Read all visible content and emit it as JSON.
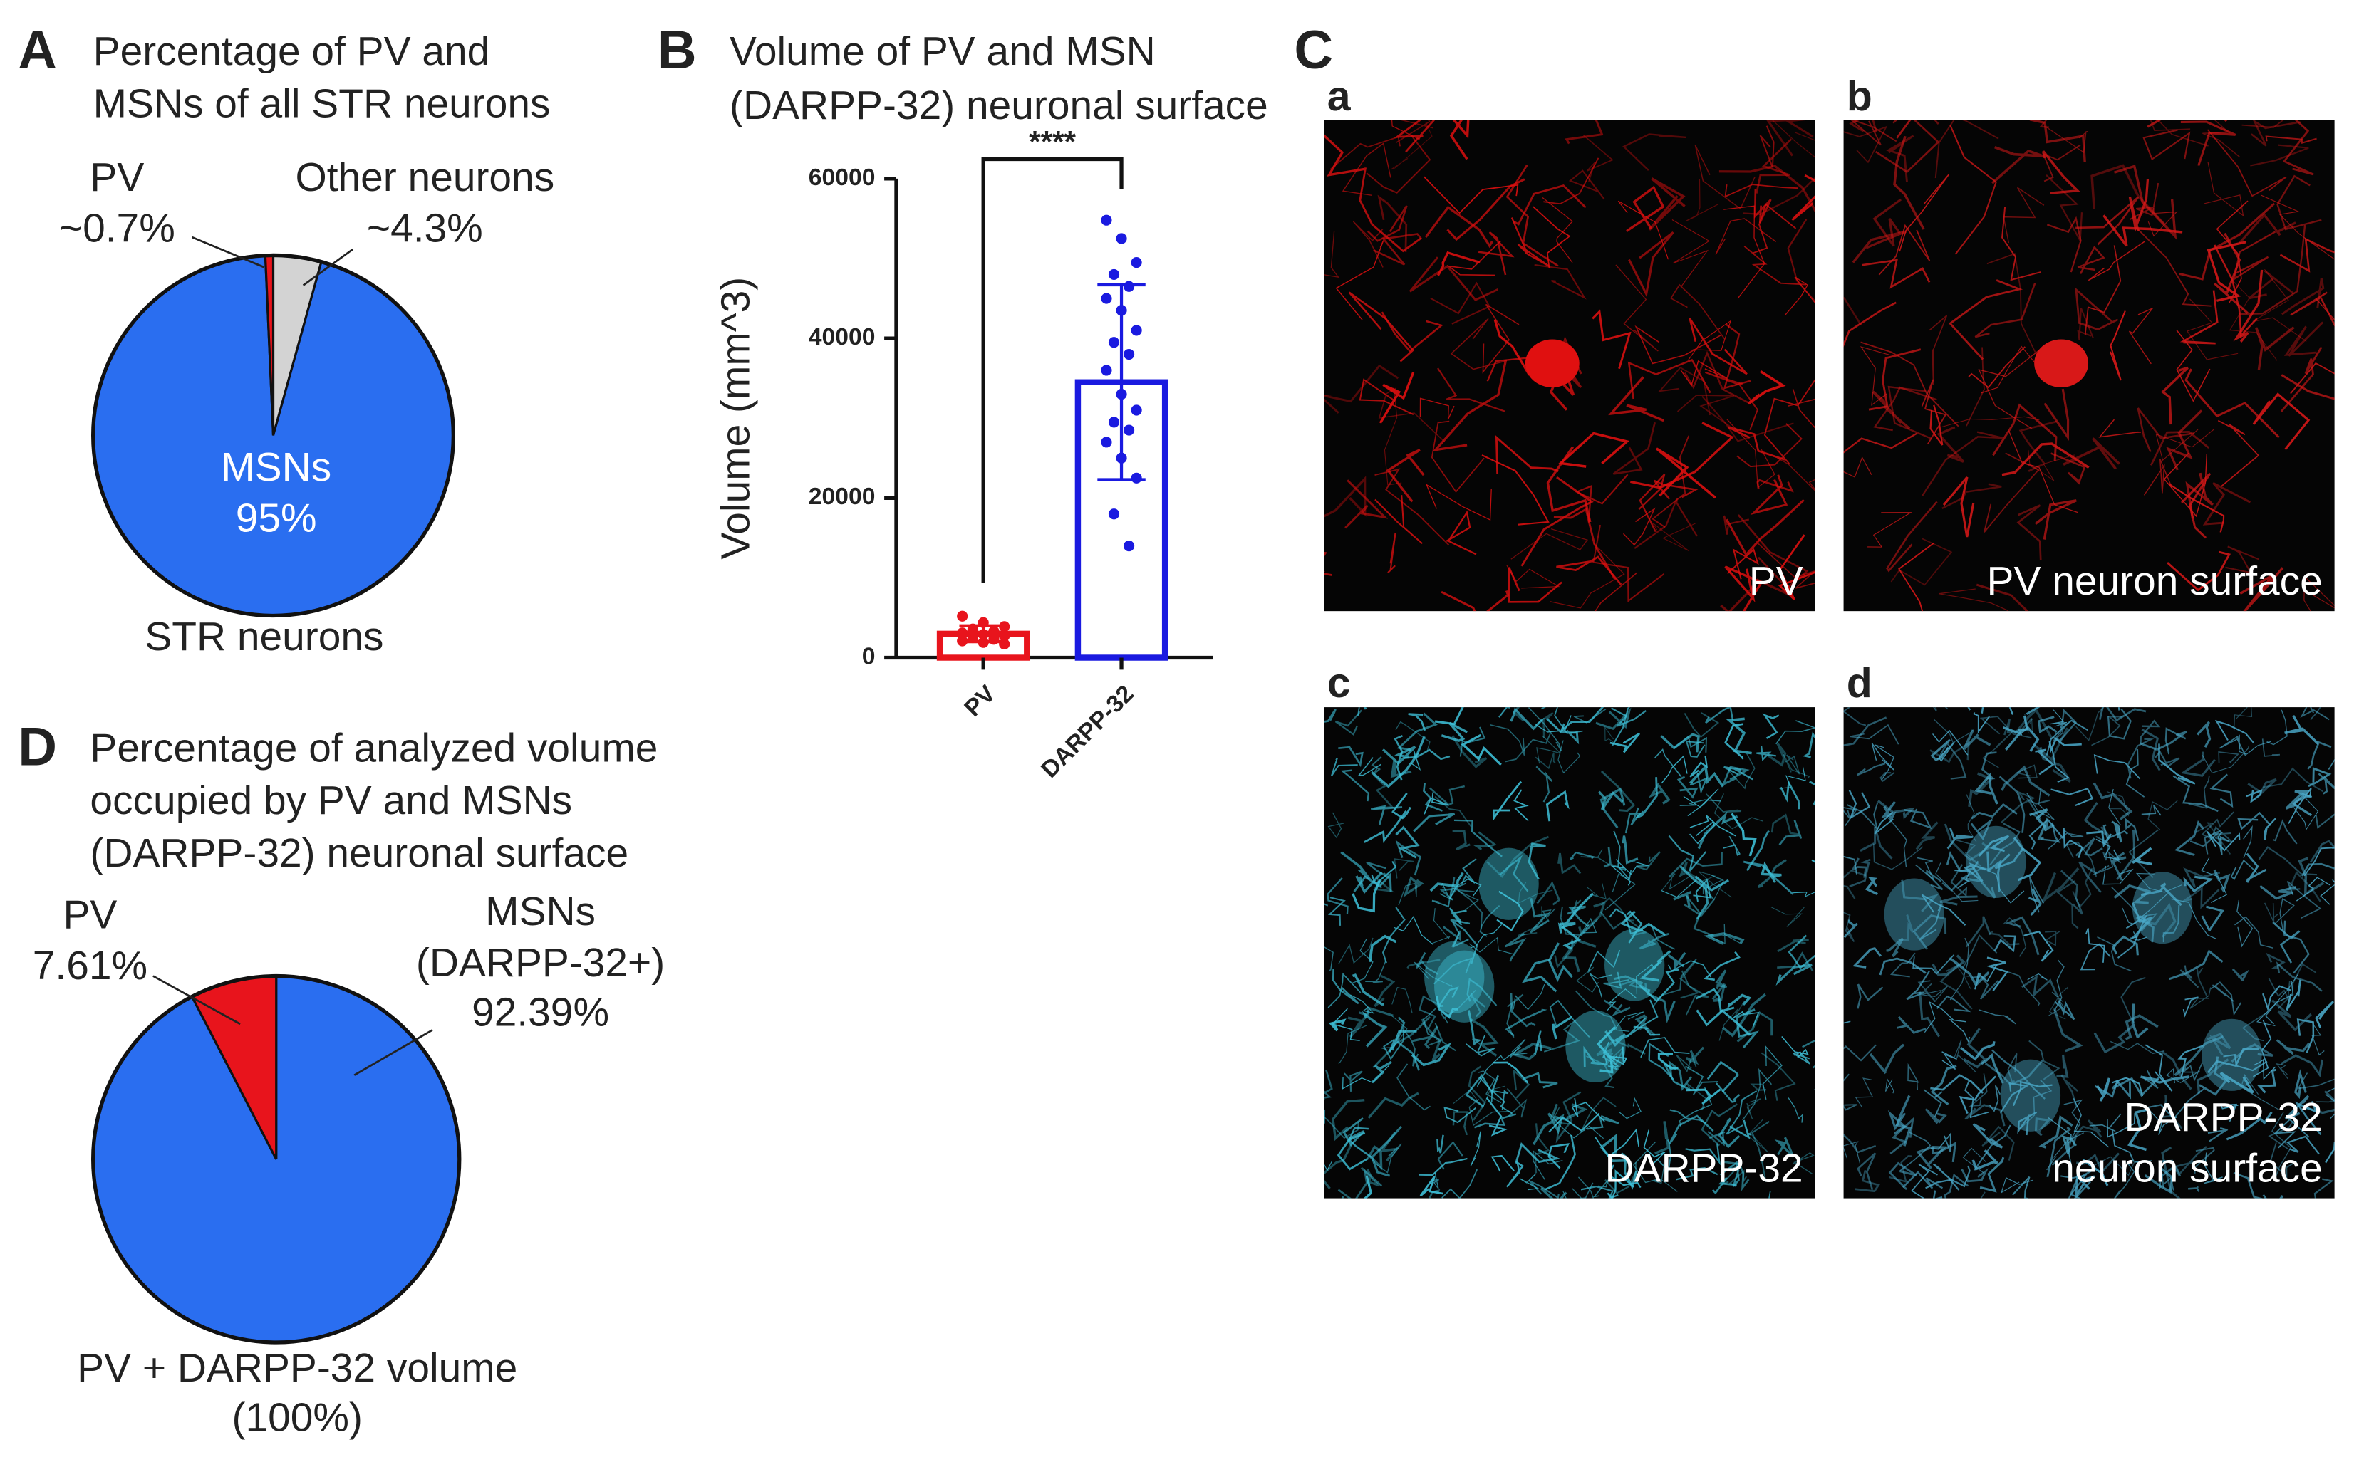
{
  "panel_labels": [
    "A",
    "B",
    "C",
    "D"
  ],
  "chart_data": [
    {
      "type": "pie",
      "title": [
        "Percentage of PV and",
        "MSNs of all STR neurons"
      ],
      "categories": [
        [
          "Other neurons"
        ],
        [
          "MSNs"
        ],
        [
          "PV"
        ]
      ],
      "values": [
        4.3,
        95,
        0.7
      ],
      "value_labels": [
        "~4.3%",
        "95%",
        "~0.7%"
      ],
      "colors": [
        "#d3d3d3",
        "#2a6ef0",
        "#e8141c"
      ],
      "caption": [
        "STR neurons"
      ]
    },
    {
      "type": "bar",
      "title": [
        "Volume of PV and MSN",
        "(DARPP-32) neuronal surface"
      ],
      "ylabel": "Volume (mm^3)",
      "categories": [
        "PV",
        "DARPP-32"
      ],
      "values": [
        3000,
        34500
      ],
      "errors": [
        1000,
        12200
      ],
      "points": [
        [
          5200,
          4400,
          3900,
          3600,
          3300,
          3100,
          2900,
          2700,
          2500,
          2300,
          2100,
          1900,
          1700,
          3400,
          2800
        ],
        [
          54800,
          52500,
          49500,
          48000,
          46500,
          45000,
          43500,
          41000,
          39500,
          38000,
          36000,
          33000,
          31000,
          29500,
          28500,
          27000,
          25000,
          22500,
          18000,
          14000
        ]
      ],
      "colors": [
        "#e8141c",
        "#1a1ae0"
      ],
      "ylim": [
        0,
        60000
      ],
      "yticks": [
        0,
        20000,
        40000,
        60000
      ],
      "annotations": [
        "****"
      ]
    },
    {
      "type": "pie",
      "title": [
        "Percentage of analyzed volume",
        "occupied by PV and MSNs",
        "(DARPP-32) neuronal surface"
      ],
      "categories": [
        [
          "MSNs",
          "(DARPP-32+)"
        ],
        [
          "PV"
        ]
      ],
      "values": [
        92.39,
        7.61
      ],
      "value_labels": [
        "92.39%",
        "7.61%"
      ],
      "colors": [
        "#2a6ef0",
        "#e8141c"
      ],
      "caption": [
        "PV + DARPP-32 volume",
        "(100%)"
      ]
    }
  ],
  "images": [
    {
      "letter": "a",
      "caption": [
        "PV"
      ],
      "color": "#e01010"
    },
    {
      "letter": "b",
      "caption": [
        "PV neuron surface"
      ],
      "color": "#d81818"
    },
    {
      "letter": "c",
      "caption": [
        "DARPP-32"
      ],
      "color": "#3ec0d8"
    },
    {
      "letter": "d",
      "caption": [
        "DARPP-32",
        "neuron surface"
      ],
      "color": "#4aa8c8"
    }
  ]
}
